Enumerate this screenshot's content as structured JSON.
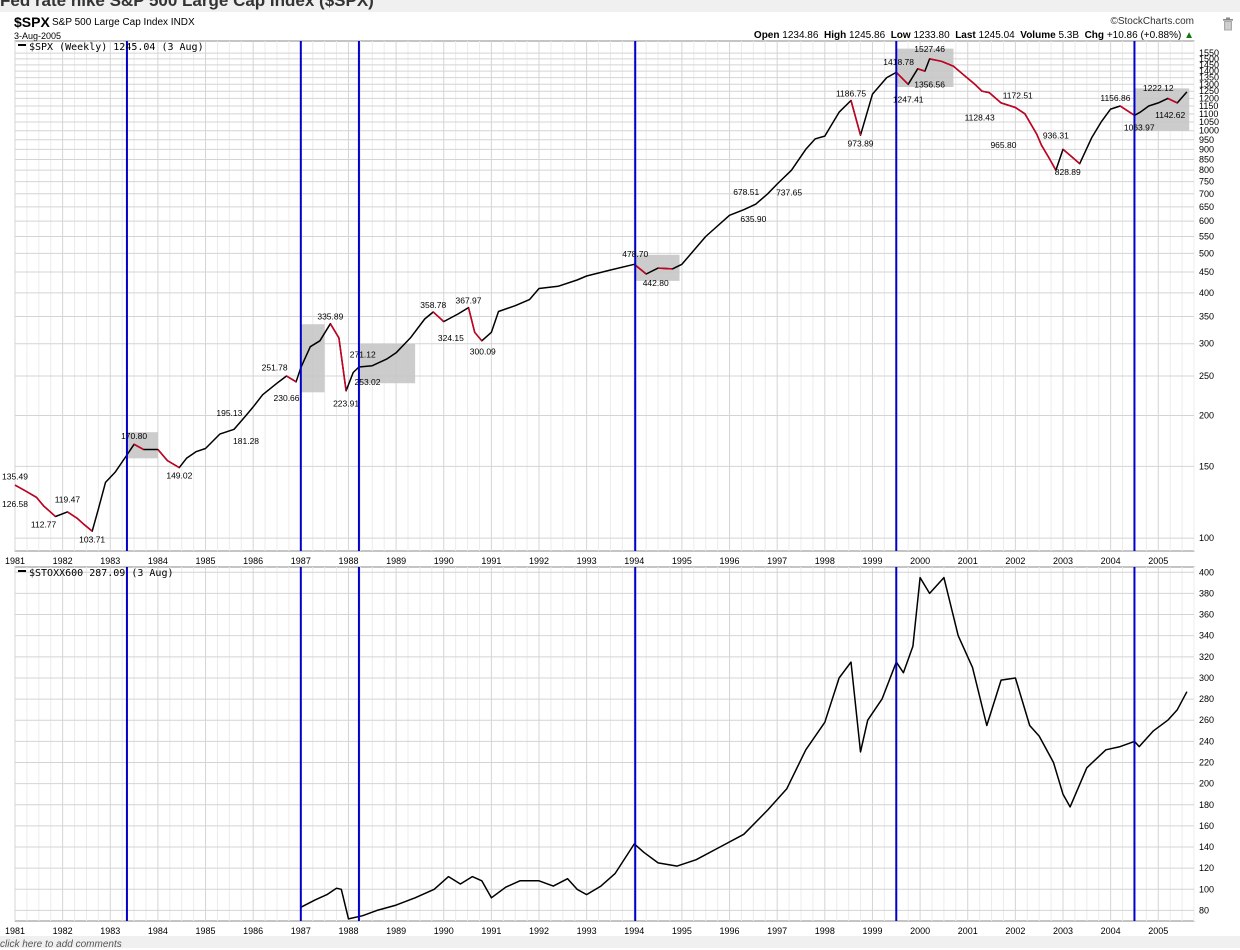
{
  "page": {
    "title_fragment": "Fed rate hike S&P 500 Large Cap Index ($SPX)",
    "footer_link": "click here to add comments"
  },
  "header": {
    "symbol": "$SPX",
    "name": "S&P 500 Large Cap Index",
    "exchange": "INDX",
    "date": "3-Aug-2005",
    "brand": "©StockCharts.com",
    "open_label": "Open",
    "open": "1234.86",
    "high_label": "High",
    "high": "1245.86",
    "low_label": "Low",
    "low": "1233.80",
    "last_label": "Last",
    "last": "1245.04",
    "volume_label": "Volume",
    "volume": "5.3B",
    "chg_label": "Chg",
    "chg": "+10.86 (+0.88%)",
    "chg_icon": "up-triangle-icon"
  },
  "colors": {
    "vline": "#0000c8",
    "price_line": "#000000",
    "down_segments": "#cc0022",
    "grid": "#d4d4d4",
    "shade": "#c6c6c6"
  },
  "chart_data": [
    {
      "type": "line",
      "legend": "$SPX (Weekly) 1245.04 (3 Aug)",
      "y_scale": "log",
      "ylim": [
        93,
        1660
      ],
      "y_ticks": [
        100,
        150,
        200,
        250,
        300,
        350,
        400,
        450,
        500,
        550,
        600,
        650,
        700,
        750,
        800,
        850,
        900,
        950,
        1000,
        1050,
        1100,
        1150,
        1200,
        1250,
        1300,
        1350,
        1400,
        1450,
        1500,
        1550
      ],
      "x_ticks": [
        "1981",
        "1982",
        "1983",
        "1984",
        "1985",
        "1986",
        "1987",
        "1988",
        "1989",
        "1990",
        "1991",
        "1992",
        "1993",
        "1994",
        "1995",
        "1996",
        "1997",
        "1998",
        "1999",
        "2000",
        "2001",
        "2002",
        "2003",
        "2004",
        "2005"
      ],
      "xlim": [
        1981.0,
        2005.75
      ],
      "vertical_lines": [
        1983.35,
        1987.0,
        1988.22,
        1994.02,
        1999.5,
        2004.5
      ],
      "shaded_zones": [
        {
          "x": [
            1983.35,
            1984.0
          ],
          "y": [
            157,
            182
          ]
        },
        {
          "x": [
            1987.0,
            1987.5
          ],
          "y": [
            228,
            335
          ]
        },
        {
          "x": [
            1988.22,
            1989.4
          ],
          "y": [
            240,
            300
          ]
        },
        {
          "x": [
            1994.02,
            1994.95
          ],
          "y": [
            428,
            496
          ]
        },
        {
          "x": [
            1999.5,
            2000.7
          ],
          "y": [
            1280,
            1590
          ]
        },
        {
          "x": [
            2004.5,
            2005.65
          ],
          "y": [
            1000,
            1270
          ]
        }
      ],
      "series": [
        {
          "x": [
            1981.0,
            1981.2,
            1981.45,
            1981.6,
            1981.85,
            1982.1,
            1982.3,
            1982.45,
            1982.62,
            1982.75,
            1982.9,
            1983.1,
            1983.35,
            1983.5,
            1983.7,
            1984.0,
            1984.2,
            1984.45,
            1984.6,
            1984.8,
            1985.0,
            1985.3,
            1985.6,
            1985.85,
            1986.0,
            1986.2,
            1986.5,
            1986.7,
            1986.9,
            1987.0,
            1987.2,
            1987.4,
            1987.62,
            1987.8,
            1987.95,
            1988.1,
            1988.22,
            1988.5,
            1988.8,
            1989.0,
            1989.3,
            1989.6,
            1989.78,
            1990.0,
            1990.3,
            1990.52,
            1990.65,
            1990.8,
            1991.0,
            1991.15,
            1991.5,
            1991.8,
            1992.0,
            1992.4,
            1992.8,
            1993.0,
            1993.5,
            1994.0,
            1994.25,
            1994.5,
            1994.8,
            1995.0,
            1995.5,
            1996.0,
            1996.3,
            1996.55,
            1996.8,
            1997.0,
            1997.3,
            1997.6,
            1997.8,
            1998.0,
            1998.3,
            1998.55,
            1998.75,
            1999.0,
            1999.3,
            1999.5,
            1999.75,
            1999.95,
            2000.1,
            2000.2,
            2000.45,
            2000.7,
            2000.95,
            2001.15,
            2001.3,
            2001.45,
            2001.7,
            2002.0,
            2002.2,
            2002.45,
            2002.55,
            2002.7,
            2002.85,
            2003.0,
            2003.2,
            2003.35,
            2003.6,
            2003.8,
            2004.0,
            2004.2,
            2004.5,
            2004.62,
            2004.8,
            2005.0,
            2005.2,
            2005.4,
            2005.6
          ],
          "y": [
            135,
            131,
            126,
            120,
            113,
            116,
            112,
            108,
            104,
            118,
            137,
            145,
            160,
            170,
            165,
            165,
            155,
            149,
            157,
            163,
            166,
            180,
            185,
            200,
            210,
            225,
            240,
            250,
            242,
            262,
            295,
            305,
            336,
            310,
            230,
            255,
            263,
            265,
            275,
            285,
            310,
            345,
            359,
            340,
            355,
            368,
            320,
            305,
            320,
            360,
            372,
            385,
            410,
            415,
            430,
            440,
            455,
            470,
            445,
            460,
            458,
            470,
            550,
            620,
            640,
            660,
            700,
            740,
            800,
            900,
            955,
            970,
            1110,
            1186,
            975,
            1230,
            1350,
            1390,
            1300,
            1419,
            1400,
            1500,
            1480,
            1440,
            1360,
            1300,
            1250,
            1240,
            1170,
            1140,
            1100,
            980,
            920,
            860,
            800,
            900,
            860,
            830,
            960,
            1050,
            1130,
            1150,
            1090,
            1110,
            1150,
            1170,
            1200,
            1170,
            1245
          ]
        }
      ],
      "annotations": [
        {
          "label": "135.49",
          "x": 1981.0,
          "y": 136,
          "pos": "above"
        },
        {
          "label": "126.58",
          "x": 1981.0,
          "y": 127,
          "pos": "below"
        },
        {
          "label": "112.77",
          "x": 1981.6,
          "y": 113,
          "pos": "below"
        },
        {
          "label": "119.47",
          "x": 1982.1,
          "y": 119.5,
          "pos": "above"
        },
        {
          "label": "103.71",
          "x": 1982.62,
          "y": 103.7,
          "pos": "below"
        },
        {
          "label": "170.80",
          "x": 1983.5,
          "y": 171,
          "pos": "above"
        },
        {
          "label": "149.02",
          "x": 1984.45,
          "y": 149,
          "pos": "below"
        },
        {
          "label": "195.13",
          "x": 1985.5,
          "y": 195,
          "pos": "above"
        },
        {
          "label": "181.28",
          "x": 1985.85,
          "y": 181,
          "pos": "below"
        },
        {
          "label": "251.78",
          "x": 1986.45,
          "y": 252,
          "pos": "above"
        },
        {
          "label": "230.66",
          "x": 1986.7,
          "y": 231,
          "pos": "below"
        },
        {
          "label": "335.89",
          "x": 1987.62,
          "y": 336,
          "pos": "above"
        },
        {
          "label": "223.91",
          "x": 1987.95,
          "y": 224,
          "pos": "below"
        },
        {
          "label": "271.12",
          "x": 1988.3,
          "y": 271,
          "pos": "above"
        },
        {
          "label": "253.02",
          "x": 1988.4,
          "y": 253,
          "pos": "below"
        },
        {
          "label": "358.78",
          "x": 1989.78,
          "y": 359,
          "pos": "above"
        },
        {
          "label": "367.97",
          "x": 1990.52,
          "y": 368,
          "pos": "above"
        },
        {
          "label": "324.15",
          "x": 1990.15,
          "y": 324,
          "pos": "below"
        },
        {
          "label": "300.09",
          "x": 1990.82,
          "y": 300,
          "pos": "below"
        },
        {
          "label": "478.70",
          "x": 1994.02,
          "y": 479,
          "pos": "above"
        },
        {
          "label": "442.80",
          "x": 1994.45,
          "y": 443,
          "pos": "below"
        },
        {
          "label": "678.51",
          "x": 1996.35,
          "y": 679,
          "pos": "above"
        },
        {
          "label": "635.90",
          "x": 1996.5,
          "y": 636,
          "pos": "below"
        },
        {
          "label": "737.65",
          "x": 1997.25,
          "y": 738,
          "pos": "below"
        },
        {
          "label": "1186.75",
          "x": 1998.55,
          "y": 1187,
          "pos": "above"
        },
        {
          "label": "973.89",
          "x": 1998.75,
          "y": 974,
          "pos": "below"
        },
        {
          "label": "1418.78",
          "x": 1999.55,
          "y": 1419,
          "pos": "above"
        },
        {
          "label": "1247.41",
          "x": 1999.75,
          "y": 1247,
          "pos": "below"
        },
        {
          "label": "1527.46",
          "x": 2000.2,
          "y": 1527,
          "pos": "above"
        },
        {
          "label": "1356.56",
          "x": 2000.2,
          "y": 1357,
          "pos": "below"
        },
        {
          "label": "1128.43",
          "x": 2001.25,
          "y": 1128,
          "pos": "below"
        },
        {
          "label": "1172.51",
          "x": 2002.05,
          "y": 1172,
          "pos": "above"
        },
        {
          "label": "965.80",
          "x": 2001.75,
          "y": 966,
          "pos": "below"
        },
        {
          "label": "936.31",
          "x": 2002.85,
          "y": 936,
          "pos": "above"
        },
        {
          "label": "828.89",
          "x": 2003.1,
          "y": 829,
          "pos": "below"
        },
        {
          "label": "1156.86",
          "x": 2004.1,
          "y": 1157,
          "pos": "above"
        },
        {
          "label": "1063.97",
          "x": 2004.6,
          "y": 1064,
          "pos": "below"
        },
        {
          "label": "1222.12",
          "x": 2005.0,
          "y": 1222,
          "pos": "above"
        },
        {
          "label": "1142.62",
          "x": 2005.25,
          "y": 1143,
          "pos": "below"
        }
      ]
    },
    {
      "type": "line",
      "legend": "$STOXX600 287.09 (3 Aug)",
      "ylim": [
        70,
        405
      ],
      "y_ticks": [
        80,
        100,
        120,
        140,
        160,
        180,
        200,
        220,
        240,
        260,
        280,
        300,
        320,
        340,
        360,
        380,
        400
      ],
      "x_ticks": [
        "1981",
        "1982",
        "1983",
        "1984",
        "1985",
        "1986",
        "1987",
        "1988",
        "1989",
        "1990",
        "1991",
        "1992",
        "1993",
        "1994",
        "1995",
        "1996",
        "1997",
        "1998",
        "1999",
        "2000",
        "2001",
        "2002",
        "2003",
        "2004",
        "2005"
      ],
      "xlim": [
        1981.0,
        2005.75
      ],
      "vertical_lines": [
        1983.35,
        1987.0,
        1988.22,
        1994.02,
        1999.5,
        2004.5
      ],
      "series": [
        {
          "x": [
            1987.0,
            1987.3,
            1987.55,
            1987.75,
            1987.85,
            1988.0,
            1988.3,
            1988.6,
            1989.0,
            1989.4,
            1989.8,
            1990.1,
            1990.35,
            1990.6,
            1990.8,
            1991.0,
            1991.3,
            1991.6,
            1992.0,
            1992.3,
            1992.6,
            1992.8,
            1993.0,
            1993.3,
            1993.6,
            1994.0,
            1994.2,
            1994.5,
            1994.9,
            1995.3,
            1995.8,
            1996.3,
            1996.8,
            1997.2,
            1997.6,
            1998.0,
            1998.3,
            1998.55,
            1998.75,
            1998.9,
            1999.2,
            1999.5,
            1999.65,
            1999.85,
            2000.0,
            2000.2,
            2000.5,
            2000.8,
            2001.1,
            2001.4,
            2001.7,
            2002.0,
            2002.3,
            2002.5,
            2002.8,
            2003.0,
            2003.15,
            2003.5,
            2003.9,
            2004.2,
            2004.5,
            2004.6,
            2004.9,
            2005.2,
            2005.4,
            2005.6
          ],
          "y": [
            83,
            90,
            95,
            101,
            100,
            72,
            75,
            80,
            85,
            92,
            100,
            112,
            105,
            112,
            108,
            92,
            102,
            108,
            108,
            103,
            110,
            100,
            95,
            103,
            115,
            143,
            135,
            125,
            122,
            128,
            140,
            152,
            175,
            195,
            232,
            258,
            300,
            315,
            230,
            260,
            280,
            315,
            305,
            330,
            395,
            380,
            395,
            340,
            310,
            255,
            298,
            300,
            255,
            245,
            220,
            190,
            178,
            215,
            232,
            235,
            240,
            235,
            250,
            260,
            270,
            287
          ]
        }
      ]
    }
  ]
}
